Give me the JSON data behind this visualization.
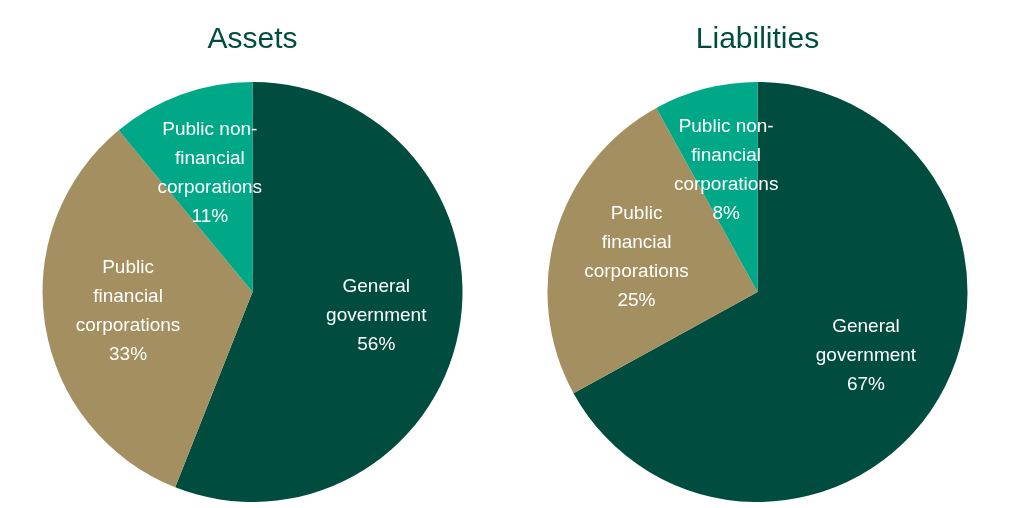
{
  "chart_data": [
    {
      "type": "pie",
      "title": "Assets",
      "categories": [
        "General government",
        "Public financial corporations",
        "Public non-financial corporations"
      ],
      "values": [
        56,
        33,
        11
      ],
      "colors": [
        "#004d40",
        "#a38f5f",
        "#00a887"
      ],
      "value_labels": [
        "56%",
        "33%",
        "11%"
      ]
    },
    {
      "type": "pie",
      "title": "Liabilities",
      "categories": [
        "General government",
        "Public financial corporations",
        "Public non-financial corporations"
      ],
      "values": [
        67,
        25,
        8
      ],
      "colors": [
        "#004d40",
        "#a38f5f",
        "#00a887"
      ],
      "value_labels": [
        "67%",
        "25%",
        "8%"
      ]
    }
  ]
}
